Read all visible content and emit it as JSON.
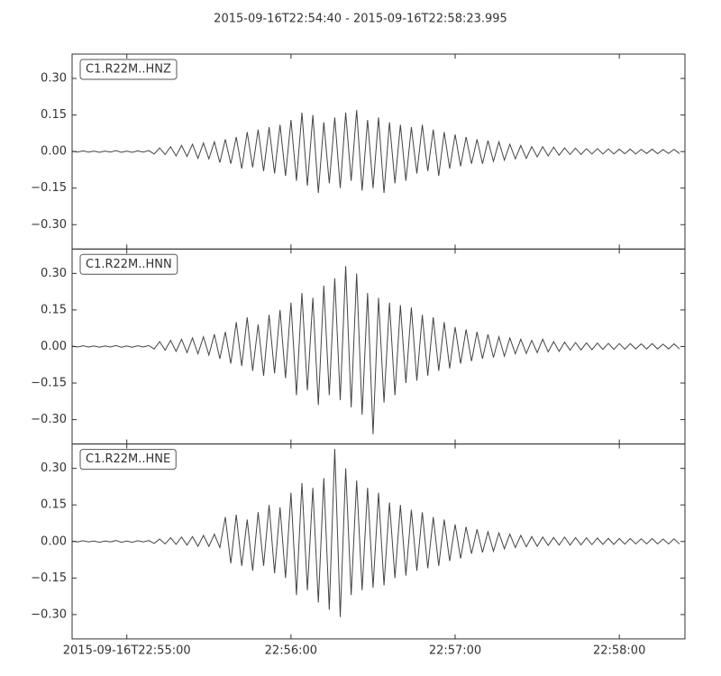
{
  "chart_data": {
    "type": "line",
    "title": "2015-09-16T22:54:40  -  2015-09-16T22:58:23.995",
    "xlim": [
      "2015-09-16T22:54:40",
      "2015-09-16T22:58:23.995"
    ],
    "xticks": [
      "2015-09-16T22:55:00",
      "22:56:00",
      "22:57:00",
      "22:58:00"
    ],
    "ylim": [
      -0.4,
      0.4
    ],
    "yticks": [
      {
        "value": 0.3,
        "label": "0.30"
      },
      {
        "value": 0.15,
        "label": "0.15"
      },
      {
        "value": 0,
        "label": "0.00"
      },
      {
        "value": -0.15,
        "label": "−0.15"
      },
      {
        "value": -0.3,
        "label": "−0.30"
      }
    ],
    "x": [
      "22:54:40",
      "22:54:42",
      "22:54:44",
      "22:54:46",
      "22:54:48",
      "22:54:50",
      "22:54:52",
      "22:54:54",
      "22:54:56",
      "22:54:58",
      "22:55:00",
      "22:55:02",
      "22:55:04",
      "22:55:06",
      "22:55:08",
      "22:55:10",
      "22:55:12",
      "22:55:14",
      "22:55:16",
      "22:55:18",
      "22:55:20",
      "22:55:22",
      "22:55:24",
      "22:55:26",
      "22:55:28",
      "22:55:30",
      "22:55:32",
      "22:55:34",
      "22:55:36",
      "22:55:38",
      "22:55:40",
      "22:55:42",
      "22:55:44",
      "22:55:46",
      "22:55:48",
      "22:55:50",
      "22:55:52",
      "22:55:54",
      "22:55:56",
      "22:55:58",
      "22:56:00",
      "22:56:02",
      "22:56:04",
      "22:56:06",
      "22:56:08",
      "22:56:10",
      "22:56:12",
      "22:56:14",
      "22:56:16",
      "22:56:18",
      "22:56:20",
      "22:56:22",
      "22:56:24",
      "22:56:26",
      "22:56:28",
      "22:56:30",
      "22:56:32",
      "22:56:34",
      "22:56:36",
      "22:56:38",
      "22:56:40",
      "22:56:42",
      "22:56:44",
      "22:56:46",
      "22:56:48",
      "22:56:50",
      "22:56:52",
      "22:56:54",
      "22:56:56",
      "22:56:58",
      "22:57:00",
      "22:57:02",
      "22:57:04",
      "22:57:06",
      "22:57:08",
      "22:57:10",
      "22:57:12",
      "22:57:14",
      "22:57:16",
      "22:57:18",
      "22:57:20",
      "22:57:22",
      "22:57:24",
      "22:57:26",
      "22:57:28",
      "22:57:30",
      "22:57:32",
      "22:57:34",
      "22:57:36",
      "22:57:38",
      "22:57:40",
      "22:57:42",
      "22:57:44",
      "22:57:46",
      "22:57:48",
      "22:57:50",
      "22:57:52",
      "22:57:54",
      "22:57:56",
      "22:57:58",
      "22:58:00",
      "22:58:02",
      "22:58:04",
      "22:58:06",
      "22:58:08",
      "22:58:10",
      "22:58:12",
      "22:58:14",
      "22:58:16",
      "22:58:18",
      "22:58:20",
      "22:58:22"
    ],
    "series": [
      {
        "name": "C1.R22M..HNZ",
        "color": "#444444",
        "values": [
          0.002,
          -0.002,
          0.003,
          -0.002,
          0.002,
          -0.003,
          0.002,
          -0.002,
          0.004,
          -0.003,
          0.002,
          -0.003,
          0.003,
          -0.002,
          0.004,
          -0.01,
          0.015,
          -0.012,
          0.02,
          -0.018,
          0.025,
          -0.02,
          0.03,
          -0.028,
          0.035,
          -0.03,
          0.04,
          -0.045,
          0.05,
          -0.05,
          0.06,
          -0.07,
          0.08,
          -0.065,
          0.09,
          -0.08,
          0.1,
          -0.09,
          0.11,
          -0.1,
          0.13,
          -0.12,
          0.16,
          -0.14,
          0.15,
          -0.17,
          0.12,
          -0.13,
          0.14,
          -0.15,
          0.16,
          -0.12,
          0.17,
          -0.16,
          0.13,
          -0.15,
          0.14,
          -0.17,
          0.12,
          -0.13,
          0.11,
          -0.12,
          0.1,
          -0.09,
          0.11,
          -0.08,
          0.09,
          -0.1,
          0.08,
          -0.07,
          0.07,
          -0.06,
          0.06,
          -0.05,
          0.05,
          -0.05,
          0.045,
          -0.04,
          0.04,
          -0.035,
          0.03,
          -0.03,
          0.025,
          -0.028,
          0.02,
          -0.022,
          0.02,
          -0.018,
          0.018,
          -0.015,
          0.015,
          -0.012,
          0.014,
          -0.012,
          0.012,
          -0.01,
          0.012,
          -0.01,
          0.011,
          -0.01,
          0.01,
          -0.009,
          0.01,
          -0.01,
          0.009,
          -0.008,
          0.01,
          -0.009,
          0.008,
          -0.008,
          0.009,
          -0.008
        ]
      },
      {
        "name": "C1.R22M..HNN",
        "color": "#444444",
        "values": [
          0.002,
          -0.002,
          0.003,
          -0.002,
          0.002,
          -0.003,
          0.002,
          -0.002,
          0.004,
          -0.003,
          0.002,
          -0.003,
          0.003,
          -0.002,
          0.004,
          -0.01,
          0.02,
          -0.015,
          0.025,
          -0.02,
          0.03,
          -0.025,
          0.035,
          -0.03,
          0.04,
          -0.035,
          0.05,
          -0.05,
          0.06,
          -0.07,
          0.1,
          -0.08,
          0.12,
          -0.1,
          0.09,
          -0.12,
          0.13,
          -0.11,
          0.15,
          -0.13,
          0.18,
          -0.2,
          0.22,
          -0.18,
          0.2,
          -0.24,
          0.25,
          -0.2,
          0.28,
          -0.22,
          0.33,
          -0.25,
          0.3,
          -0.28,
          0.22,
          -0.36,
          0.2,
          -0.23,
          0.18,
          -0.2,
          0.17,
          -0.15,
          0.16,
          -0.14,
          0.13,
          -0.12,
          0.12,
          -0.1,
          0.1,
          -0.09,
          0.08,
          -0.07,
          0.07,
          -0.06,
          0.06,
          -0.05,
          0.05,
          -0.045,
          0.04,
          -0.04,
          0.035,
          -0.03,
          0.03,
          -0.028,
          0.025,
          -0.025,
          0.03,
          -0.022,
          0.02,
          -0.02,
          0.018,
          -0.015,
          0.016,
          -0.014,
          0.015,
          -0.013,
          0.014,
          -0.012,
          0.013,
          -0.012,
          0.012,
          -0.011,
          0.012,
          -0.01,
          0.011,
          -0.01,
          0.012,
          -0.01,
          0.01,
          -0.01,
          0.011,
          -0.01
        ]
      },
      {
        "name": "C1.R22M..HNE",
        "color": "#444444",
        "values": [
          0.002,
          -0.002,
          0.003,
          -0.002,
          0.002,
          -0.003,
          0.002,
          -0.002,
          0.004,
          -0.003,
          0.002,
          -0.003,
          0.003,
          -0.002,
          0.004,
          -0.008,
          0.01,
          -0.01,
          0.015,
          -0.012,
          0.018,
          -0.015,
          0.02,
          -0.02,
          0.025,
          -0.02,
          0.03,
          -0.025,
          0.1,
          -0.09,
          0.11,
          -0.1,
          0.09,
          -0.12,
          0.12,
          -0.1,
          0.15,
          -0.13,
          0.14,
          -0.15,
          0.2,
          -0.22,
          0.24,
          -0.2,
          0.22,
          -0.25,
          0.26,
          -0.28,
          0.38,
          -0.31,
          0.3,
          -0.22,
          0.25,
          -0.2,
          0.22,
          -0.19,
          0.2,
          -0.18,
          0.16,
          -0.15,
          0.15,
          -0.14,
          0.13,
          -0.12,
          0.12,
          -0.11,
          0.1,
          -0.1,
          0.09,
          -0.08,
          0.07,
          -0.07,
          0.06,
          -0.05,
          0.05,
          -0.045,
          0.04,
          -0.04,
          0.035,
          -0.03,
          0.03,
          -0.025,
          0.025,
          -0.022,
          0.02,
          -0.02,
          0.018,
          -0.016,
          0.016,
          -0.015,
          0.018,
          -0.015,
          0.016,
          -0.014,
          0.015,
          -0.013,
          0.014,
          -0.012,
          0.013,
          -0.012,
          0.012,
          -0.011,
          0.012,
          -0.01,
          0.011,
          -0.01,
          0.012,
          -0.01,
          0.01,
          -0.01,
          0.011,
          -0.01
        ]
      }
    ]
  }
}
